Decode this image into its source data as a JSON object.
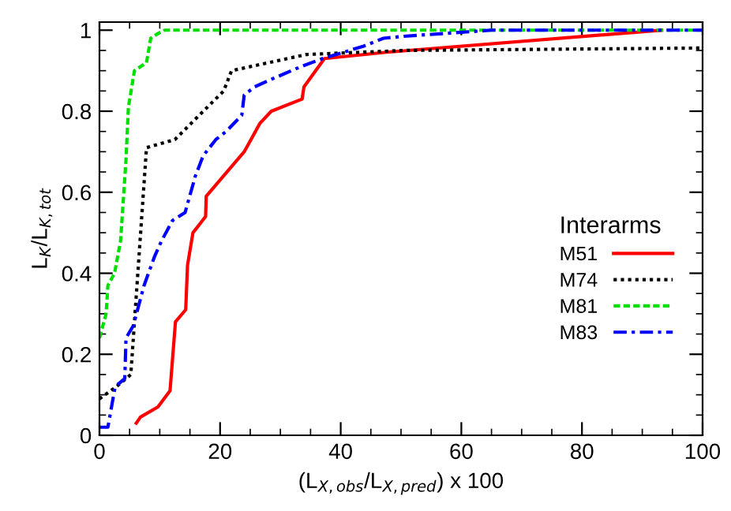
{
  "chart_data": {
    "type": "line",
    "xlabel": "(L$_{X,obs}$/L$_{X,pred}$) x 100",
    "ylabel": "L$_{K}$/L$_{K,tot}$",
    "legend_title": "Interarms",
    "legend": "lower right",
    "grid": false,
    "xlim": [
      0,
      100
    ],
    "ylim": [
      0,
      1.02
    ],
    "xticks": [
      0,
      20,
      40,
      60,
      80,
      100
    ],
    "yticks": [
      0,
      0.2,
      0.4,
      0.6,
      0.8,
      1
    ],
    "series": [
      {
        "name": "M51",
        "color": "#ff0000",
        "line_style": "solid",
        "x": [
          6.1,
          6.8,
          9.7,
          11.7,
          12.6,
          14.3,
          14.6,
          15.5,
          17.6,
          17.7,
          24,
          26.6,
          28.5,
          33.6,
          33.9,
          37.3,
          47.9,
          93.2
        ],
        "values": [
          0.03,
          0.045,
          0.07,
          0.11,
          0.28,
          0.31,
          0.42,
          0.5,
          0.54,
          0.59,
          0.7,
          0.77,
          0.8,
          0.83,
          0.86,
          0.93,
          0.946,
          1.0
        ]
      },
      {
        "name": "M74",
        "color": "#000000",
        "line_style": "dotted",
        "x": [
          0,
          2.8,
          5.2,
          7.8,
          12.5,
          20.6,
          21.9,
          34.3,
          50.5,
          100
        ],
        "values": [
          0.09,
          0.12,
          0.15,
          0.71,
          0.73,
          0.85,
          0.9,
          0.94,
          0.95,
          0.956
        ]
      },
      {
        "name": "M81",
        "color": "#00e000",
        "line_style": "dashed",
        "x": [
          0,
          1.1,
          1.4,
          2.5,
          3.5,
          4.4,
          4.8,
          5.8,
          7.8,
          8.5,
          9.5,
          10.8,
          100
        ],
        "values": [
          0.24,
          0.3,
          0.37,
          0.4,
          0.48,
          0.68,
          0.81,
          0.9,
          0.92,
          0.98,
          0.99,
          1.0,
          1.0
        ]
      },
      {
        "name": "M83",
        "color": "#0000ff",
        "line_style": "dashdot",
        "x": [
          0,
          1.4,
          2.6,
          4.2,
          4.4,
          5.6,
          7.4,
          9.1,
          10.3,
          12.1,
          14.2,
          15.9,
          17.2,
          19.3,
          21,
          23.6,
          24,
          25.7,
          28.7,
          33.4,
          37,
          43.7,
          47.1,
          50.5,
          65,
          100
        ],
        "values": [
          0.02,
          0.02,
          0.12,
          0.14,
          0.24,
          0.27,
          0.37,
          0.44,
          0.48,
          0.53,
          0.55,
          0.64,
          0.69,
          0.73,
          0.75,
          0.79,
          0.84,
          0.86,
          0.88,
          0.91,
          0.93,
          0.96,
          0.98,
          0.985,
          1.0,
          1.0
        ]
      }
    ]
  }
}
